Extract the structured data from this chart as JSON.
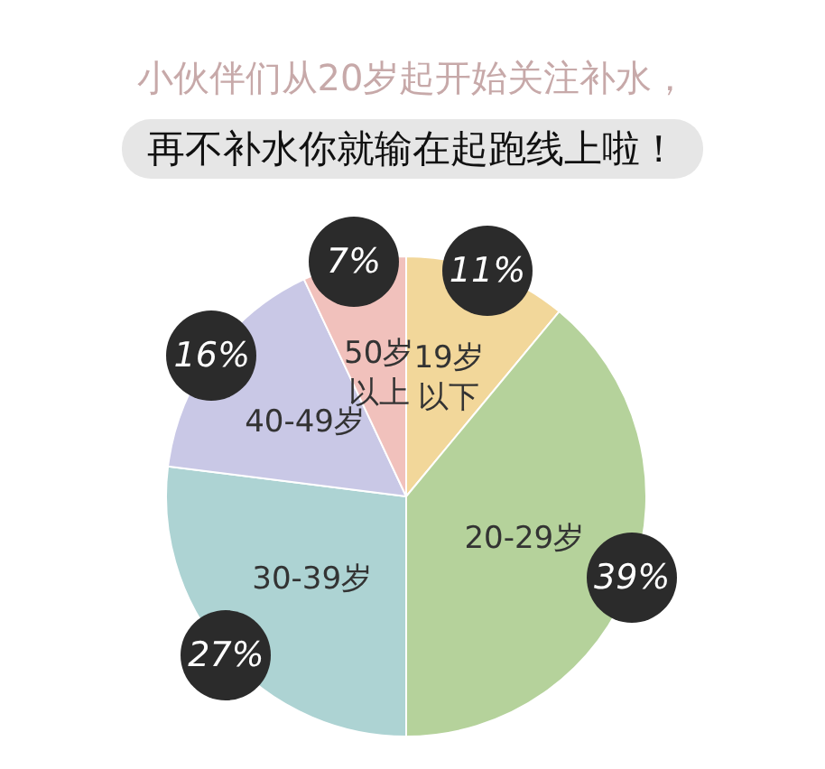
{
  "chart_data": {
    "type": "pie",
    "title": "小伙伴们从20岁起开始关注补水，",
    "subtitle": "再不补水你就输在起跑线上啦！",
    "categories": [
      "19岁以下",
      "20-29岁",
      "30-39岁",
      "40-49岁",
      "50岁以上"
    ],
    "values": [
      11,
      39,
      27,
      16,
      7
    ],
    "value_labels": [
      "11%",
      "39%",
      "27%",
      "16%",
      "7%"
    ],
    "colors": [
      "#f2d79a",
      "#b5d29b",
      "#add3d3",
      "#c9c8e6",
      "#f1c1bc"
    ],
    "legend": false
  }
}
